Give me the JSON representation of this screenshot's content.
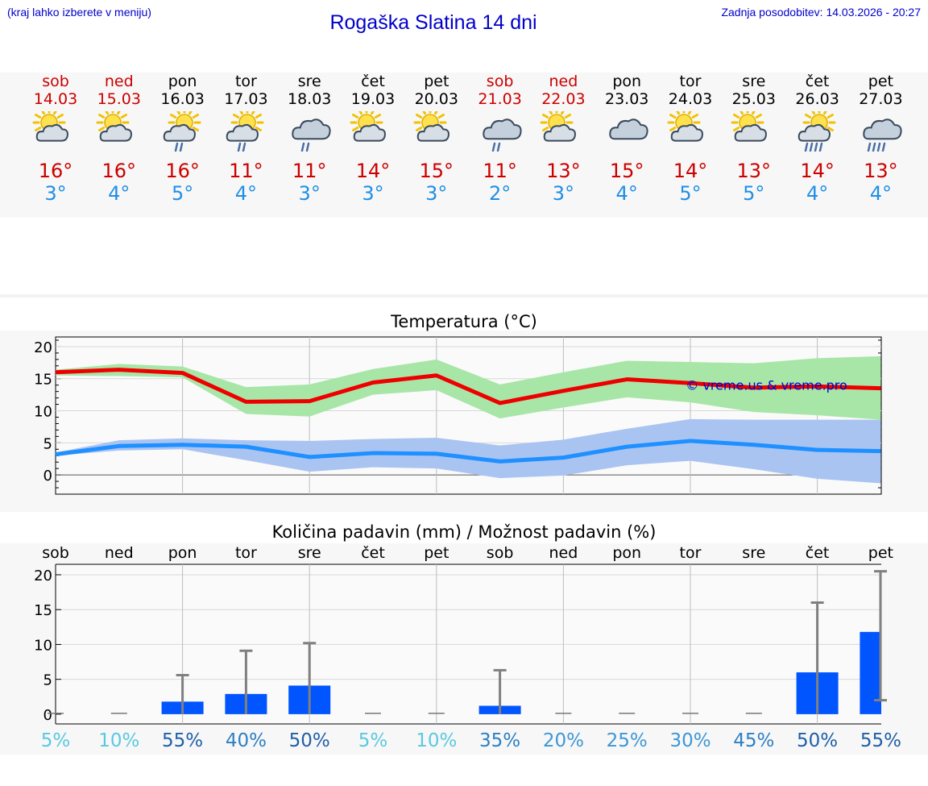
{
  "header": {
    "hint": "(kraj lahko izberete v meniju)",
    "title": "Rogaška Slatina 14 dni",
    "updated_label": "Zadnja posodobitev: 14.03.2026 - 20:27"
  },
  "days": [
    {
      "name": "sob",
      "date": "14.03",
      "weekend": true,
      "icon": "sun-cloud-icon",
      "max": "16°",
      "min": "3°"
    },
    {
      "name": "ned",
      "date": "15.03",
      "weekend": true,
      "icon": "sun-cloud-icon",
      "max": "16°",
      "min": "4°"
    },
    {
      "name": "pon",
      "date": "16.03",
      "weekend": false,
      "icon": "sun-cloud-rain-icon",
      "max": "16°",
      "min": "5°"
    },
    {
      "name": "tor",
      "date": "17.03",
      "weekend": false,
      "icon": "sun-cloud-rain-icon",
      "max": "11°",
      "min": "4°"
    },
    {
      "name": "sre",
      "date": "18.03",
      "weekend": false,
      "icon": "cloud-rain-icon",
      "max": "11°",
      "min": "3°"
    },
    {
      "name": "čet",
      "date": "19.03",
      "weekend": false,
      "icon": "sun-cloud-icon",
      "max": "14°",
      "min": "3°"
    },
    {
      "name": "pet",
      "date": "20.03",
      "weekend": false,
      "icon": "sun-cloud-icon",
      "max": "15°",
      "min": "3°"
    },
    {
      "name": "sob",
      "date": "21.03",
      "weekend": true,
      "icon": "cloud-rain-icon",
      "max": "11°",
      "min": "2°"
    },
    {
      "name": "ned",
      "date": "22.03",
      "weekend": true,
      "icon": "sun-cloud-icon",
      "max": "13°",
      "min": "3°"
    },
    {
      "name": "pon",
      "date": "23.03",
      "weekend": false,
      "icon": "cloud-icon",
      "max": "15°",
      "min": "4°"
    },
    {
      "name": "tor",
      "date": "24.03",
      "weekend": false,
      "icon": "sun-cloud-icon",
      "max": "14°",
      "min": "5°"
    },
    {
      "name": "sre",
      "date": "25.03",
      "weekend": false,
      "icon": "sun-cloud-icon",
      "max": "13°",
      "min": "5°"
    },
    {
      "name": "čet",
      "date": "26.03",
      "weekend": false,
      "icon": "sun-cloud-heavy-rain-icon",
      "max": "14°",
      "min": "4°"
    },
    {
      "name": "pet",
      "date": "27.03",
      "weekend": false,
      "icon": "cloud-heavy-rain-icon",
      "max": "13°",
      "min": "4°"
    }
  ],
  "colors": {
    "weekend": "#cc0000",
    "max_line": "#ee0000",
    "min_line": "#1e90ff",
    "max_band": "#a8e6a8",
    "min_band": "#aac4f2",
    "bar": "#0055ff",
    "whisker": "#808080"
  },
  "chart_data": [
    {
      "type": "line",
      "title": "Temperatura (°C)",
      "watermark": "© vreme.us & vreme.pro",
      "x": [
        0,
        1,
        2,
        3,
        4,
        5,
        6,
        7,
        8,
        9,
        10,
        11,
        12,
        13
      ],
      "ylim": [
        -3,
        21.5
      ],
      "yticks": [
        0,
        5,
        10,
        15,
        20
      ],
      "series": [
        {
          "name": "max",
          "values": [
            16.0,
            16.4,
            15.9,
            11.4,
            11.5,
            14.4,
            15.5,
            11.2,
            13.1,
            14.9,
            14.3,
            13.6,
            13.8,
            13.5
          ]
        },
        {
          "name": "max_band_low",
          "values": [
            15.5,
            15.4,
            15.2,
            9.5,
            9.1,
            12.5,
            13.2,
            8.8,
            10.5,
            12.1,
            11.3,
            9.8,
            9.3,
            8.6
          ]
        },
        {
          "name": "max_band_high",
          "values": [
            16.4,
            17.3,
            16.9,
            13.7,
            14.1,
            16.5,
            18.0,
            14.1,
            16.0,
            17.8,
            17.6,
            17.4,
            18.2,
            18.5
          ]
        },
        {
          "name": "min",
          "values": [
            3.2,
            4.5,
            4.7,
            4.4,
            2.8,
            3.4,
            3.3,
            2.1,
            2.7,
            4.4,
            5.3,
            4.7,
            3.9,
            3.7
          ]
        },
        {
          "name": "min_band_low",
          "values": [
            3.0,
            3.8,
            4.0,
            2.3,
            0.5,
            1.2,
            1.0,
            -0.5,
            -0.1,
            1.5,
            2.2,
            0.9,
            -0.6,
            -1.3
          ]
        },
        {
          "name": "min_band_high",
          "values": [
            3.5,
            5.4,
            5.7,
            5.4,
            5.3,
            5.6,
            5.8,
            4.6,
            5.5,
            7.2,
            8.7,
            8.6,
            8.6,
            8.6
          ]
        }
      ]
    },
    {
      "type": "bar",
      "title": "Količina padavin (mm) / Možnost padavin (%)",
      "categories": [
        "sob",
        "ned",
        "pon",
        "tor",
        "sre",
        "čet",
        "pet",
        "sob",
        "ned",
        "pon",
        "tor",
        "sre",
        "čet",
        "pet"
      ],
      "ylim": [
        -1.4,
        21.5
      ],
      "yticks": [
        0,
        5,
        10,
        15,
        20
      ],
      "values": [
        0,
        0,
        1.8,
        2.9,
        4.1,
        0,
        0,
        1.2,
        0,
        0,
        0,
        0,
        6.0,
        11.8
      ],
      "whisker_low": [
        0,
        0,
        0,
        0,
        0,
        0,
        0,
        0,
        0,
        0,
        0,
        0,
        0,
        2.0
      ],
      "whisker_high": [
        0,
        0,
        5.6,
        9.1,
        10.2,
        0,
        0,
        6.3,
        0,
        0,
        0,
        0,
        16.0,
        20.5
      ],
      "probability": [
        "5%",
        "10%",
        "55%",
        "40%",
        "50%",
        "5%",
        "10%",
        "35%",
        "20%",
        "25%",
        "30%",
        "45%",
        "50%",
        "55%"
      ],
      "probability_values": [
        5,
        10,
        55,
        40,
        50,
        5,
        10,
        35,
        20,
        25,
        30,
        45,
        50,
        55
      ]
    }
  ]
}
